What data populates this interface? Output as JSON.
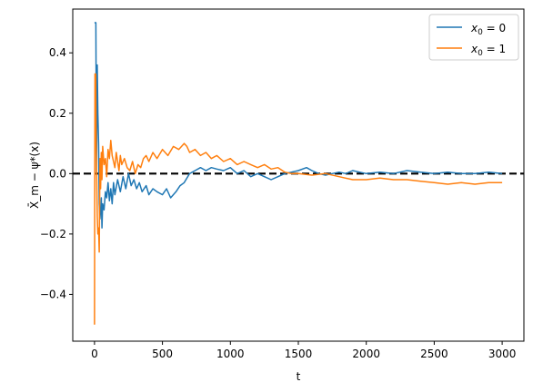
{
  "chart_data": {
    "type": "line",
    "xlabel": "t",
    "ylabel": "X̄_m − ψ*(x)",
    "xlim": [
      -160,
      3160
    ],
    "ylim": [
      -0.555,
      0.545
    ],
    "x_ticks": [
      0,
      500,
      1000,
      1500,
      2000,
      2500,
      3000
    ],
    "x_tick_labels": [
      "0",
      "500",
      "1000",
      "1500",
      "2000",
      "2500",
      "3000"
    ],
    "y_ticks": [
      -0.4,
      -0.2,
      0.0,
      0.2,
      0.4
    ],
    "y_tick_labels": [
      "−0.4",
      "−0.2",
      "0.0",
      "0.2",
      "0.4"
    ],
    "reference_line": {
      "y": 0.0,
      "style": "dashed",
      "color": "#000000"
    },
    "legend_position": "top-right",
    "grid": false,
    "series": [
      {
        "name": "x0 = 0",
        "legend_main": "x",
        "legend_sub": "0",
        "legend_rest": " = 0",
        "color": "#1f77b4",
        "x": [
          0,
          5,
          10,
          15,
          20,
          25,
          30,
          35,
          40,
          45,
          50,
          55,
          60,
          70,
          80,
          90,
          100,
          110,
          120,
          130,
          140,
          150,
          170,
          190,
          210,
          230,
          250,
          270,
          290,
          310,
          330,
          350,
          380,
          400,
          430,
          460,
          500,
          530,
          560,
          600,
          630,
          660,
          700,
          740,
          780,
          820,
          860,
          900,
          950,
          1000,
          1050,
          1100,
          1150,
          1200,
          1250,
          1300,
          1350,
          1400,
          1450,
          1500,
          1560,
          1600,
          1650,
          1700,
          1750,
          1800,
          1850,
          1900,
          1950,
          2000,
          2100,
          2200,
          2300,
          2400,
          2500,
          2600,
          2700,
          2800,
          2900,
          3000
        ],
        "y": [
          0.5,
          0.5,
          0.5,
          0.0,
          0.36,
          0.2,
          0.1,
          -0.1,
          -0.15,
          -0.12,
          -0.08,
          -0.18,
          -0.1,
          -0.12,
          -0.06,
          -0.08,
          -0.03,
          -0.09,
          -0.05,
          -0.1,
          -0.03,
          -0.07,
          -0.02,
          -0.06,
          -0.01,
          -0.05,
          0.0,
          -0.04,
          -0.02,
          -0.05,
          -0.03,
          -0.06,
          -0.04,
          -0.07,
          -0.05,
          -0.06,
          -0.07,
          -0.05,
          -0.08,
          -0.06,
          -0.04,
          -0.03,
          0.0,
          0.01,
          0.02,
          0.01,
          0.02,
          0.015,
          0.01,
          0.02,
          0.0,
          0.01,
          -0.01,
          0.0,
          -0.01,
          -0.02,
          -0.01,
          0.0,
          0.005,
          0.01,
          0.02,
          0.01,
          0.0,
          -0.005,
          0.0,
          0.005,
          0.0,
          0.01,
          0.005,
          0.0,
          0.005,
          0.0,
          0.01,
          0.005,
          0.0,
          0.005,
          0.0,
          0.0,
          0.005,
          0.0
        ]
      },
      {
        "name": "x0 = 1",
        "legend_main": "x",
        "legend_sub": "0",
        "legend_rest": " = 1",
        "color": "#ff7f0e",
        "x": [
          0,
          3,
          6,
          9,
          12,
          15,
          20,
          25,
          30,
          35,
          40,
          45,
          50,
          55,
          60,
          70,
          80,
          90,
          100,
          110,
          120,
          130,
          140,
          150,
          160,
          170,
          180,
          190,
          200,
          220,
          240,
          260,
          280,
          300,
          320,
          340,
          360,
          380,
          400,
          430,
          460,
          500,
          540,
          580,
          620,
          660,
          680,
          700,
          740,
          780,
          820,
          860,
          900,
          950,
          1000,
          1050,
          1100,
          1150,
          1200,
          1250,
          1300,
          1350,
          1400,
          1450,
          1500,
          1600,
          1700,
          1800,
          1900,
          2000,
          2100,
          2200,
          2300,
          2400,
          2500,
          2600,
          2700,
          2800,
          2900,
          3000
        ],
        "y": [
          -0.5,
          0.33,
          0.2,
          0.33,
          0.1,
          0.05,
          -0.14,
          -0.2,
          -0.18,
          -0.26,
          0.05,
          -0.05,
          0.07,
          -0.02,
          0.09,
          0.03,
          0.05,
          -0.01,
          0.08,
          0.05,
          0.11,
          0.06,
          0.04,
          0.02,
          0.07,
          0.04,
          0.01,
          0.06,
          0.03,
          0.05,
          0.02,
          0.01,
          0.04,
          0.0,
          0.03,
          0.02,
          0.05,
          0.06,
          0.04,
          0.07,
          0.05,
          0.08,
          0.06,
          0.09,
          0.08,
          0.1,
          0.09,
          0.07,
          0.08,
          0.06,
          0.07,
          0.05,
          0.06,
          0.04,
          0.05,
          0.03,
          0.04,
          0.03,
          0.02,
          0.03,
          0.015,
          0.02,
          0.005,
          0.0,
          0.0,
          -0.005,
          0.0,
          -0.01,
          -0.02,
          -0.02,
          -0.015,
          -0.02,
          -0.02,
          -0.025,
          -0.03,
          -0.035,
          -0.03,
          -0.035,
          -0.03,
          -0.03
        ]
      }
    ]
  }
}
